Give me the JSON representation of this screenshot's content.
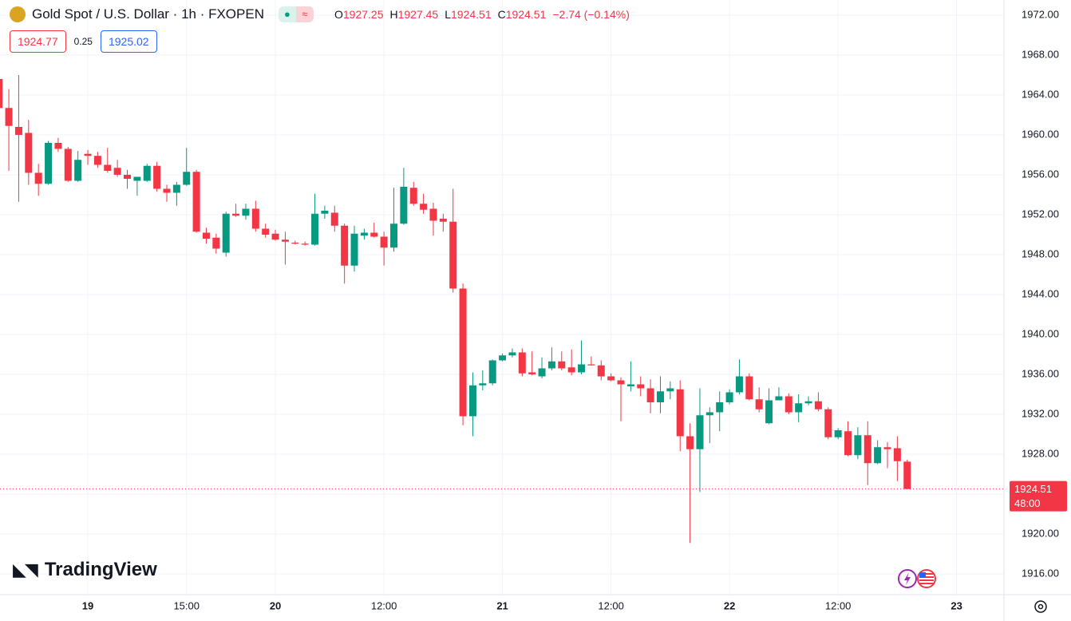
{
  "chart_data": {
    "type": "candlestick",
    "title": "Gold Spot / U.S. Dollar · 1h · FXOPEN",
    "header": {
      "ohlc": [
        {
          "label": "O",
          "value": "1927.25"
        },
        {
          "label": "H",
          "value": "1927.45"
        },
        {
          "label": "L",
          "value": "1924.51"
        },
        {
          "label": "C",
          "value": "1924.51"
        }
      ],
      "change": "−2.74 (−0.14%)"
    },
    "quote": {
      "bid": "1924.77",
      "spread": "0.25",
      "ask": "1925.02"
    },
    "watermark": "TradingView",
    "last_price": 1924.51,
    "countdown": "48:00",
    "up_color": "#089981",
    "down_color": "#f23645",
    "categories": [
      null,
      null,
      null,
      null,
      null,
      null,
      null,
      null,
      null,
      "19",
      null,
      null,
      null,
      null,
      null,
      null,
      null,
      null,
      null,
      "15:00",
      null,
      null,
      null,
      null,
      null,
      null,
      null,
      null,
      "20",
      null,
      null,
      null,
      null,
      null,
      null,
      null,
      null,
      null,
      null,
      "12:00",
      null,
      null,
      null,
      null,
      null,
      null,
      null,
      null,
      null,
      null,
      null,
      "21",
      null,
      null,
      null,
      null,
      null,
      null,
      null,
      null,
      null,
      null,
      "12:00",
      null,
      null,
      null,
      null,
      null,
      null,
      null,
      null,
      null,
      null,
      null,
      "22",
      null,
      null,
      null,
      null,
      null,
      null,
      null,
      null,
      null,
      null,
      "12:00",
      null,
      null,
      null,
      null,
      null,
      null,
      null,
      null,
      null,
      null,
      null,
      "23"
    ],
    "open": [
      1965.6,
      1962.7,
      1960.8,
      1960.2,
      1956.2,
      1955.1,
      1959.2,
      1958.6,
      1955.4,
      1958.1,
      1957.9,
      1957.0,
      1956.7,
      1956.0,
      1955.4,
      1955.4,
      1956.9,
      1954.6,
      1954.2,
      1955.0,
      1956.3,
      1950.2,
      1949.7,
      1948.2,
      1952.1,
      1951.9,
      1952.6,
      1950.6,
      1950.1,
      1949.5,
      1949.2,
      1949.1,
      1949.0,
      1952.1,
      1952.2,
      1950.9,
      1946.9,
      1949.9,
      1950.2,
      1949.8,
      1948.7,
      1951.1,
      1954.7,
      1953.1,
      1952.6,
      1951.6,
      1951.3,
      1944.6,
      1931.8,
      1934.9,
      1935.1,
      1937.4,
      1937.9,
      1938.2,
      1936.2,
      1935.8,
      1936.6,
      1937.3,
      1936.7,
      1936.2,
      1937.0,
      1936.9,
      1935.8,
      1935.4,
      1934.8,
      1935.0,
      1934.6,
      1933.2,
      1934.3,
      1934.5,
      1929.8,
      1928.5,
      1931.9,
      1932.2,
      1933.2,
      1934.2,
      1935.8,
      1933.5,
      1931.1,
      1933.4,
      1933.8,
      1932.2,
      1933.1,
      1933.3,
      1932.5,
      1929.7,
      1930.3,
      1927.9,
      1929.9,
      1927.1,
      1928.7,
      1928.6,
      1927.25,
      null,
      null,
      null,
      null,
      null
    ],
    "high": [
      1966.2,
      1964.6,
      1966.0,
      1961.5,
      1957.1,
      1959.4,
      1959.7,
      1958.8,
      1958.4,
      1958.5,
      1958.3,
      1958.7,
      1957.5,
      1956.5,
      1955.8,
      1957.1,
      1957.3,
      1955.0,
      1955.3,
      1958.7,
      1956.5,
      1950.7,
      1950.1,
      1952.3,
      1953.1,
      1953.1,
      1953.4,
      1951.1,
      1950.5,
      1950.3,
      1949.4,
      1949.3,
      1954.1,
      1952.9,
      1952.9,
      1951.1,
      1950.9,
      1950.6,
      1951.2,
      1950.3,
      1954.7,
      1956.7,
      1955.3,
      1954.1,
      1953.2,
      1952.1,
      1954.6,
      1945.1,
      1936.2,
      1936.4,
      1937.5,
      1938.1,
      1938.6,
      1938.6,
      1938.3,
      1937.7,
      1938.7,
      1938.3,
      1938.5,
      1939.4,
      1937.8,
      1937.4,
      1936.1,
      1935.7,
      1937.3,
      1935.8,
      1935.5,
      1935.8,
      1935.3,
      1935.4,
      1931.1,
      1934.6,
      1932.7,
      1934.3,
      1934.5,
      1937.5,
      1936.1,
      1934.7,
      1934.6,
      1934.7,
      1934.1,
      1934.0,
      1933.8,
      1934.2,
      1932.7,
      1930.6,
      1931.3,
      1930.7,
      1931.3,
      1929.4,
      1929.2,
      1929.8,
      1927.45,
      null,
      null,
      null,
      null,
      null
    ],
    "low": [
      1962.0,
      1956.4,
      1953.3,
      1955.0,
      1953.9,
      1955.0,
      1958.3,
      1955.3,
      1955.3,
      1957.0,
      1956.7,
      1956.2,
      1955.8,
      1954.6,
      1953.9,
      1955.3,
      1954.3,
      1953.3,
      1952.9,
      1954.9,
      1950.2,
      1949.1,
      1948.1,
      1947.8,
      1951.8,
      1951.5,
      1950.3,
      1949.7,
      1949.4,
      1947.0,
      1949.0,
      1948.9,
      1948.9,
      1951.6,
      1950.3,
      1945.1,
      1946.3,
      1949.5,
      1949.7,
      1946.9,
      1948.3,
      1951.0,
      1952.9,
      1952.1,
      1949.9,
      1950.3,
      1944.2,
      1930.9,
      1929.8,
      1934.4,
      1934.9,
      1937.3,
      1937.7,
      1935.8,
      1935.9,
      1935.6,
      1936.4,
      1936.4,
      1935.9,
      1936.0,
      1936.9,
      1935.4,
      1935.3,
      1931.3,
      1934.3,
      1933.8,
      1932.1,
      1932.1,
      1933.5,
      1928.3,
      1919.1,
      1924.2,
      1929.1,
      1930.3,
      1933.0,
      1934.0,
      1933.4,
      1932.2,
      1931.0,
      1933.4,
      1932.0,
      1931.2,
      1932.9,
      1932.3,
      1929.5,
      1929.5,
      1927.8,
      1927.5,
      1924.9,
      1927.0,
      1926.6,
      1925.3,
      1924.51,
      null,
      null,
      null,
      null,
      null
    ],
    "close": [
      1962.7,
      1960.9,
      1960.0,
      1956.2,
      1955.1,
      1959.2,
      1958.6,
      1955.4,
      1957.5,
      1957.9,
      1957.0,
      1956.4,
      1956.0,
      1955.6,
      1955.8,
      1956.9,
      1954.6,
      1954.2,
      1955.0,
      1956.3,
      1950.3,
      1949.6,
      1948.6,
      1952.1,
      1951.9,
      1952.6,
      1950.6,
      1950.0,
      1949.5,
      1949.3,
      1949.1,
      1949.0,
      1952.1,
      1952.4,
      1950.9,
      1946.9,
      1950.1,
      1950.2,
      1949.8,
      1948.7,
      1951.1,
      1954.8,
      1953.1,
      1952.5,
      1951.4,
      1951.3,
      1944.6,
      1931.8,
      1934.9,
      1935.1,
      1937.4,
      1937.9,
      1938.2,
      1936.1,
      1936.0,
      1936.6,
      1937.3,
      1936.6,
      1936.2,
      1937.0,
      1936.9,
      1935.8,
      1935.4,
      1935.0,
      1935.0,
      1934.6,
      1933.2,
      1934.3,
      1934.6,
      1929.8,
      1928.5,
      1931.9,
      1932.2,
      1933.2,
      1934.2,
      1935.8,
      1933.5,
      1932.5,
      1933.4,
      1933.8,
      1932.2,
      1933.1,
      1933.3,
      1932.5,
      1929.7,
      1930.4,
      1927.9,
      1929.9,
      1927.1,
      1928.7,
      1928.5,
      1927.3,
      1924.51,
      null,
      null,
      null,
      null,
      null
    ],
    "ylim": [
      1913.92,
      1973.52
    ],
    "yticks": [
      {
        "value": 1916,
        "label": "1916.00"
      },
      {
        "value": 1920,
        "label": "1920.00"
      },
      {
        "value": 1924,
        "label": "1924.00"
      },
      {
        "value": 1928,
        "label": "1928.00"
      },
      {
        "value": 1932,
        "label": "1932.00"
      },
      {
        "value": 1936,
        "label": "1936.00"
      },
      {
        "value": 1940,
        "label": "1940.00"
      },
      {
        "value": 1944,
        "label": "1944.00"
      },
      {
        "value": 1948,
        "label": "1948.00"
      },
      {
        "value": 1952,
        "label": "1952.00"
      },
      {
        "value": 1956,
        "label": "1956.00"
      },
      {
        "value": 1960,
        "label": "1960.00"
      },
      {
        "value": 1964,
        "label": "1964.00"
      },
      {
        "value": 1968,
        "label": "1968.00"
      },
      {
        "value": 1972,
        "label": "1972.00"
      }
    ],
    "grid": true
  }
}
